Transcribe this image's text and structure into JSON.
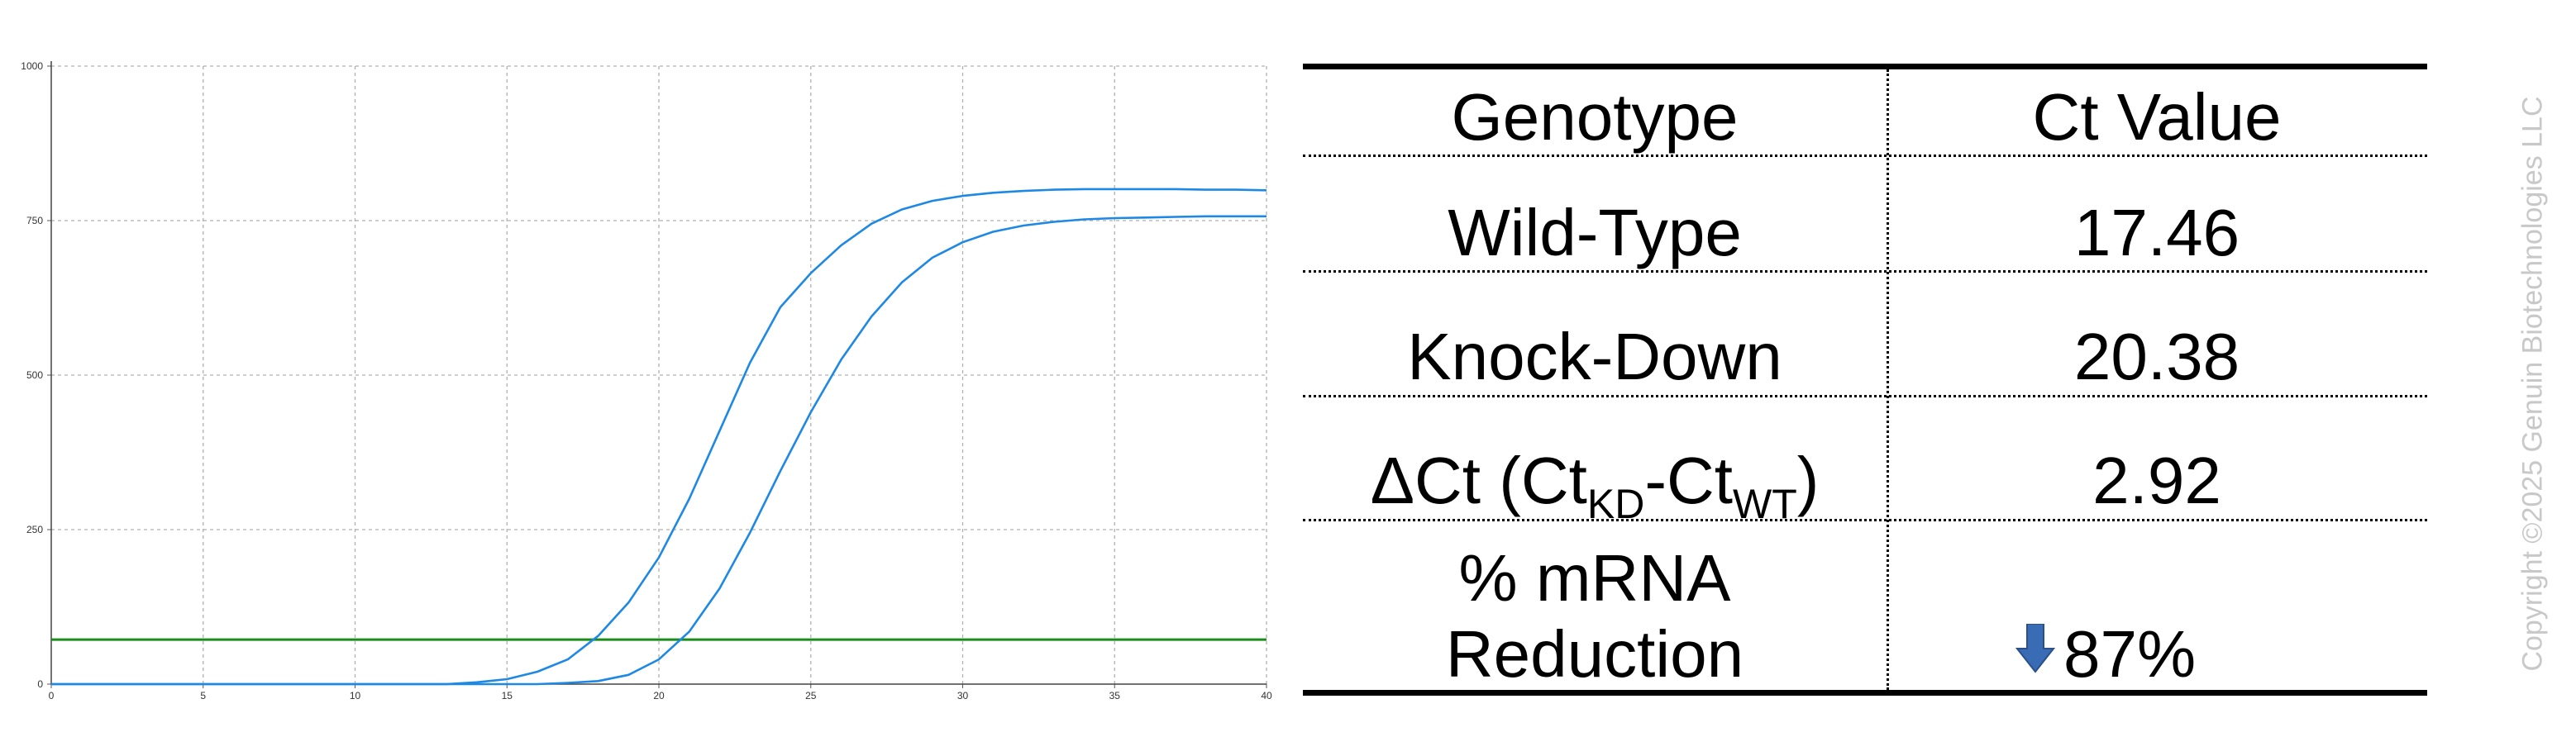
{
  "chart_data": {
    "type": "line",
    "title": "",
    "xlabel": "",
    "ylabel": "",
    "xlim": [
      0,
      40
    ],
    "ylim": [
      0,
      1000
    ],
    "x_ticks": [
      0,
      5,
      10,
      15,
      20,
      25,
      30,
      35,
      40
    ],
    "y_ticks": [
      0,
      250,
      500,
      750,
      1000
    ],
    "grid": true,
    "legend": "none",
    "series": [
      {
        "color": "#1E88E5",
        "x": [
          0,
          13,
          14,
          15,
          16,
          17,
          18,
          19,
          20,
          21,
          22,
          23,
          24,
          25,
          26,
          27,
          28,
          29,
          30,
          31,
          32,
          33,
          34,
          35,
          36,
          37,
          38,
          39,
          40
        ],
        "y": [
          0,
          0,
          3,
          8,
          20,
          40,
          78,
          132,
          205,
          300,
          410,
          520,
          610,
          665,
          710,
          745,
          768,
          782,
          790,
          795,
          798,
          800,
          801,
          801,
          801,
          801,
          800,
          800,
          799
        ]
      },
      {
        "color": "#1E88E5",
        "x": [
          0,
          16,
          17,
          18,
          19,
          20,
          21,
          22,
          23,
          24,
          25,
          26,
          27,
          28,
          29,
          30,
          31,
          32,
          33,
          34,
          35,
          36,
          37,
          38,
          39,
          40
        ],
        "y": [
          0,
          0,
          2,
          5,
          15,
          40,
          85,
          155,
          245,
          345,
          440,
          525,
          595,
          650,
          690,
          715,
          732,
          742,
          748,
          752,
          754,
          755,
          756,
          757,
          757,
          757
        ]
      }
    ],
    "threshold": {
      "y": 72,
      "color": "#1A8C1A"
    }
  },
  "table": {
    "header": {
      "genotype": "Genotype",
      "ct": "Ct Value"
    },
    "rows": [
      {
        "label": "Wild-Type",
        "value": "17.46"
      },
      {
        "label": "Knock-Down",
        "value": "20.38"
      }
    ],
    "delta_row": {
      "prefix": "ΔCt (Ct",
      "sub_kd": "KD",
      "dash": "-Ct",
      "sub_wt": "WT",
      "suffix": ")",
      "value": "2.92"
    },
    "reduction_row": {
      "label_line1": "% mRNA",
      "label_line2": "Reduction",
      "value": "87%",
      "icon": "down-arrow-icon",
      "icon_color": "#3A6CB5"
    }
  },
  "copyright": "Copyright ©2025 Genuin Biotechnologies LLC"
}
